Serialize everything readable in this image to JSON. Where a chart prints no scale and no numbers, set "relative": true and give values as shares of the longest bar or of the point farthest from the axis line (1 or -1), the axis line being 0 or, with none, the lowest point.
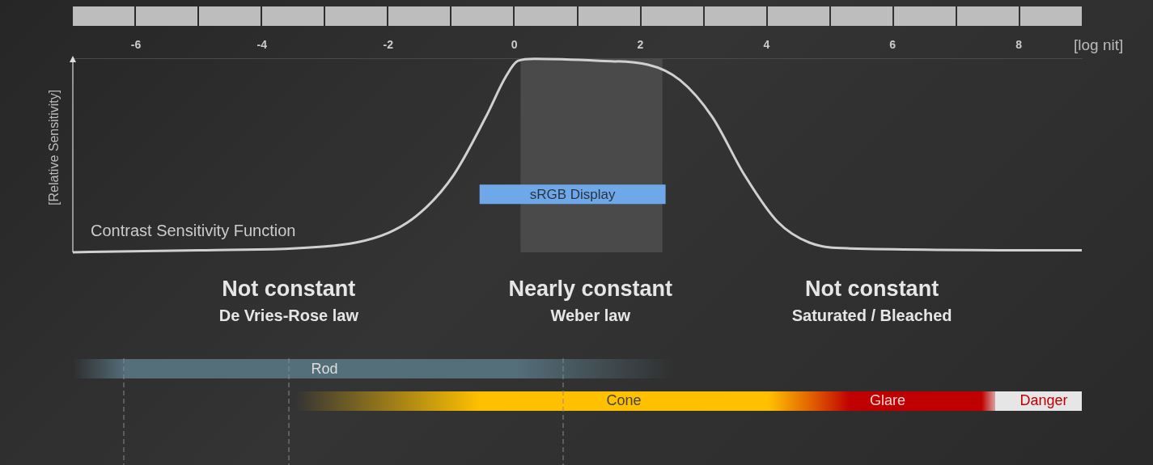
{
  "chart_data": {
    "type": "line",
    "xlabel": "[log nit]",
    "ylabel": "[Relative Sensitivity]",
    "relative": true,
    "x": [
      -7,
      -5,
      -3,
      -2,
      -1.47,
      -0.96,
      -0.45,
      -0.13,
      0.06,
      0.32,
      1.35,
      2.12,
      2.63,
      3.14,
      3.65,
      4.17,
      4.68,
      5.32,
      9
    ],
    "series": [
      {
        "color": "#d0d0d0",
        "values": [
          0,
          0.01,
          0.03,
          0.1,
          0.21,
          0.4,
          0.7,
          0.91,
          0.99,
          1,
          0.99,
          0.97,
          0.89,
          0.7,
          0.4,
          0.16,
          0.05,
          0.02,
          0.01
        ]
      }
    ],
    "xlim": [
      -7,
      9
    ],
    "xticks": [
      -6,
      -4,
      -2,
      0,
      2,
      4,
      6,
      8
    ],
    "bands": [
      {
        "axis": "x",
        "from": 0.1,
        "to": 2.35,
        "color": "#5a5a5a"
      },
      {
        "axis": "x",
        "from": -0.55,
        "to": 2.4,
        "label": "sRGB Display",
        "color": "#6fa8e8"
      }
    ],
    "annotations": [
      "Contrast Sensitivity Function",
      "Not constant\nDe Vries-Rose law",
      "Nearly constant\nWeber law",
      "Not constant\nSaturated / Bleached",
      "Rod",
      "Cone",
      "Glare",
      "Danger"
    ]
  }
}
